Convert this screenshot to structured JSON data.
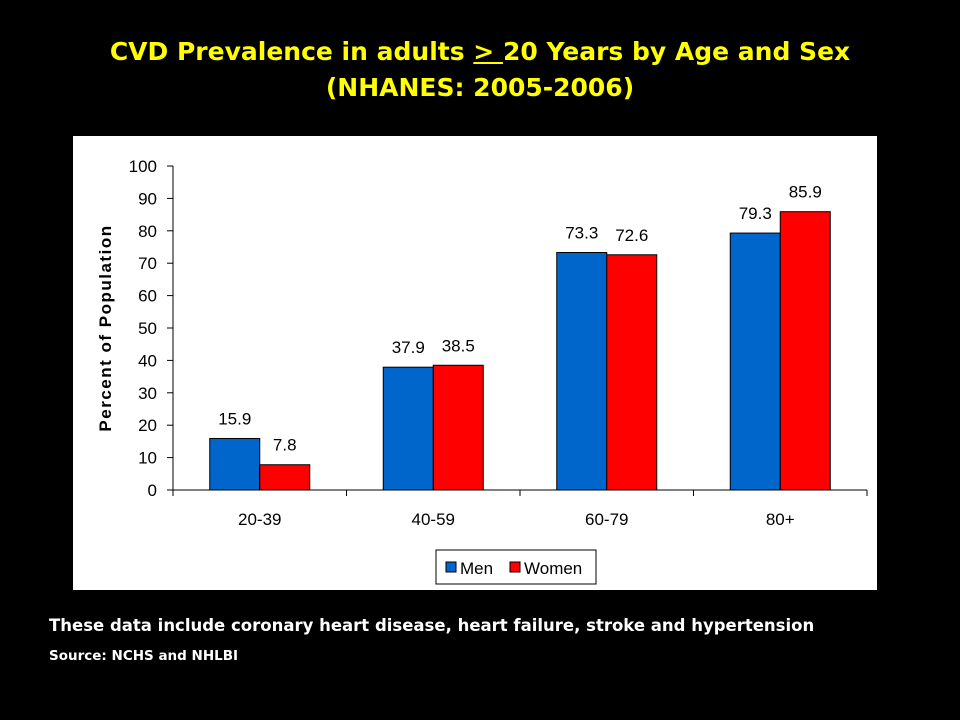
{
  "slide": {
    "title_line1_part1": "CVD Prevalence in adults ",
    "title_line1_underlined": "> ",
    "title_line1_part2": "20 Years by Age and Sex",
    "title_line2": "(NHANES: 2005-2006)",
    "footnote": "These data include coronary heart disease, heart failure, stroke and hypertension",
    "source": "Source: NCHS and NHLBI",
    "background_color": "#000000",
    "title_color": "#ffff00",
    "text_color": "#ffffff"
  },
  "chart_data": {
    "type": "bar",
    "categories": [
      "20-39",
      "40-59",
      "60-79",
      "80+"
    ],
    "series": [
      {
        "name": "Men",
        "values": [
          15.9,
          37.9,
          73.3,
          79.3
        ],
        "color": "#0066cc"
      },
      {
        "name": "Women",
        "values": [
          7.8,
          38.5,
          72.6,
          85.9
        ],
        "color": "#ff0000"
      }
    ],
    "ylabel": "Percent of Population",
    "xlabel": "",
    "ylim": [
      0,
      100
    ],
    "yticks": [
      0,
      10,
      20,
      30,
      40,
      50,
      60,
      70,
      80,
      90,
      100
    ],
    "grid": false,
    "legend_position": "bottom",
    "data_labels": true
  }
}
